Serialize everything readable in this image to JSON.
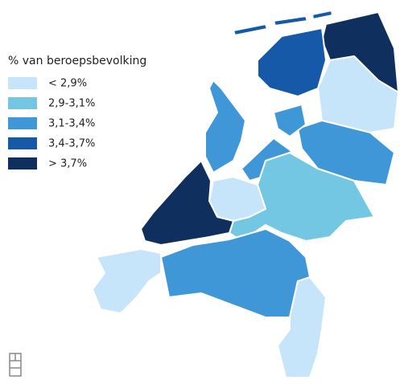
{
  "legend": {
    "title": "% van beroepsbevolking",
    "items": [
      {
        "label": "< 2,9%",
        "color": "#c6e4fa"
      },
      {
        "label": "2,9-3,1%",
        "color": "#74c7e3"
      },
      {
        "label": "3,1-3,4%",
        "color": "#3f97d8"
      },
      {
        "label": "3,4-3,7%",
        "color": "#1559a8"
      },
      {
        "label": "> 3,7%",
        "color": "#0f2f5e"
      }
    ]
  }
}
